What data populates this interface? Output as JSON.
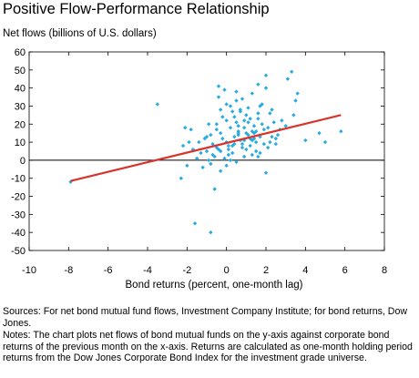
{
  "chart_data": {
    "type": "scatter",
    "title": "Positive Flow-Performance Relationship",
    "ylabel": "Net flows (billions of U.S. dollars)",
    "xlabel": "Bond returns (percent, one-month lag)",
    "xlim": [
      -10,
      8
    ],
    "ylim": [
      -50,
      60
    ],
    "xticks": [
      -10,
      -8,
      -6,
      -4,
      -2,
      0,
      2,
      4,
      6,
      8
    ],
    "yticks": [
      -50,
      -40,
      -30,
      -20,
      -10,
      0,
      10,
      20,
      30,
      40,
      50,
      60
    ],
    "grid": false,
    "legend": "none",
    "point_color": "#29abe2",
    "line_color": "#d9342b",
    "trend_line": {
      "x": [
        -7.9,
        5.8
      ],
      "y": [
        -11.5,
        25.0
      ]
    },
    "points": {
      "x": [
        -7.9,
        -3.5,
        -2.3,
        -2.1,
        -2.0,
        -1.8,
        -1.6,
        -1.5,
        -1.3,
        -1.2,
        -1.0,
        -0.9,
        -0.8,
        -0.7,
        -0.6,
        -0.5,
        -0.4,
        -0.3,
        -0.2,
        -0.1,
        0.0,
        0.1,
        0.2,
        0.3,
        0.4,
        0.5,
        0.6,
        0.7,
        0.8,
        0.9,
        1.0,
        1.1,
        1.2,
        1.3,
        1.4,
        1.5,
        1.6,
        1.7,
        1.8,
        1.9,
        2.0,
        2.1,
        2.3,
        2.5,
        2.8,
        3.1,
        3.3,
        3.5,
        3.6,
        4.0,
        4.7,
        5.0,
        5.8,
        -0.5,
        -0.4,
        -0.3,
        -0.1,
        0.0,
        0.2,
        0.3,
        0.5,
        0.6,
        0.8,
        0.9,
        1.1,
        1.2,
        1.4,
        1.6,
        1.7,
        2.0,
        2.2,
        2.4,
        2.7,
        3.0,
        -0.7,
        -0.2,
        0.1,
        0.4,
        0.7,
        1.0,
        1.3,
        1.5,
        1.8,
        2.1,
        2.6,
        3.4,
        -1.1,
        -0.6,
        0.0,
        0.3,
        0.6,
        0.9,
        1.2,
        1.6,
        1.9,
        2.3,
        -2.2,
        -1.4,
        -0.8,
        -0.3,
        0.2,
        0.5,
        0.8,
        1.1,
        1.4,
        1.7,
        2.0,
        2.5,
        -1.7,
        -1.0,
        -0.5,
        0.0,
        0.4,
        0.7,
        1.0,
        1.3,
        1.6,
        2.2,
        -0.3,
        0.1,
        0.5,
        0.9,
        1.3,
        -1.9,
        -0.9,
        1.5,
        -0.4,
        0.6,
        -0.8
      ],
      "y": [
        -12,
        31,
        -10,
        18,
        -3,
        17,
        -35,
        1,
        4,
        -4,
        5,
        0,
        -2,
        3,
        -16,
        7,
        41,
        28,
        12,
        39,
        22,
        6,
        18,
        27,
        9,
        -1,
        16,
        11,
        34,
        2,
        25,
        14,
        8,
        37,
        19,
        5,
        23,
        13,
        31,
        9,
        47,
        18,
        28,
        12,
        22,
        45,
        49,
        33,
        37,
        11,
        15,
        10,
        16,
        20,
        6,
        15,
        1,
        10,
        30,
        4,
        21,
        14,
        7,
        18,
        29,
        12,
        15,
        26,
        4,
        40,
        10,
        21,
        17,
        19,
        9,
        24,
        3,
        13,
        27,
        6,
        16,
        10,
        20,
        7,
        14,
        25,
        12,
        2,
        31,
        8,
        19,
        11,
        23,
        2,
        17,
        13,
        8,
        10,
        14,
        5,
        0,
        33,
        9,
        21,
        12,
        30,
        -7,
        9,
        6,
        13,
        17,
        -3,
        24,
        28,
        15,
        11,
        42,
        26,
        -6,
        8,
        38,
        22,
        3,
        10,
        20,
        16,
        35,
        15,
        -40
      ]
    }
  },
  "notes": {
    "sources": "Sources: For net bond mutual fund flows, Investment Company Institute; for bond returns, Dow Jones.",
    "notes": "Notes: The chart plots net flows of bond mutual funds on the y-axis against corporate bond returns of the previous month on the x-axis. Returns are calculated as one-month holding period returns from the Dow Jones Corporate Bond Index for the investment grade universe."
  }
}
